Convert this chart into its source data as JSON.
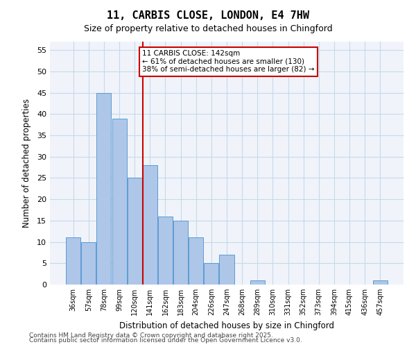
{
  "title_line1": "11, CARBIS CLOSE, LONDON, E4 7HW",
  "title_line2": "Size of property relative to detached houses in Chingford",
  "xlabel": "Distribution of detached houses by size in Chingford",
  "ylabel": "Number of detached properties",
  "categories": [
    "36sqm",
    "57sqm",
    "78sqm",
    "99sqm",
    "120sqm",
    "141sqm",
    "162sqm",
    "183sqm",
    "204sqm",
    "226sqm",
    "247sqm",
    "268sqm",
    "289sqm",
    "310sqm",
    "331sqm",
    "352sqm",
    "373sqm",
    "394sqm",
    "415sqm",
    "436sqm",
    "457sqm"
  ],
  "values": [
    11,
    10,
    45,
    39,
    25,
    28,
    16,
    15,
    11,
    5,
    7,
    0,
    1,
    0,
    0,
    0,
    0,
    0,
    0,
    0,
    1
  ],
  "bar_color": "#aec6e8",
  "bar_edge_color": "#5b9bd5",
  "grid_color": "#c8d8e8",
  "background_color": "#f0f4fa",
  "vline_x_index": 5,
  "vline_color": "#cc0000",
  "annotation_text": "11 CARBIS CLOSE: 142sqm\n← 61% of detached houses are smaller (130)\n38% of semi-detached houses are larger (82) →",
  "annotation_box_color": "#cc0000",
  "ylim": [
    0,
    57
  ],
  "yticks": [
    0,
    5,
    10,
    15,
    20,
    25,
    30,
    35,
    40,
    45,
    50,
    55
  ],
  "footnote_line1": "Contains HM Land Registry data © Crown copyright and database right 2025.",
  "footnote_line2": "Contains public sector information licensed under the Open Government Licence v3.0."
}
